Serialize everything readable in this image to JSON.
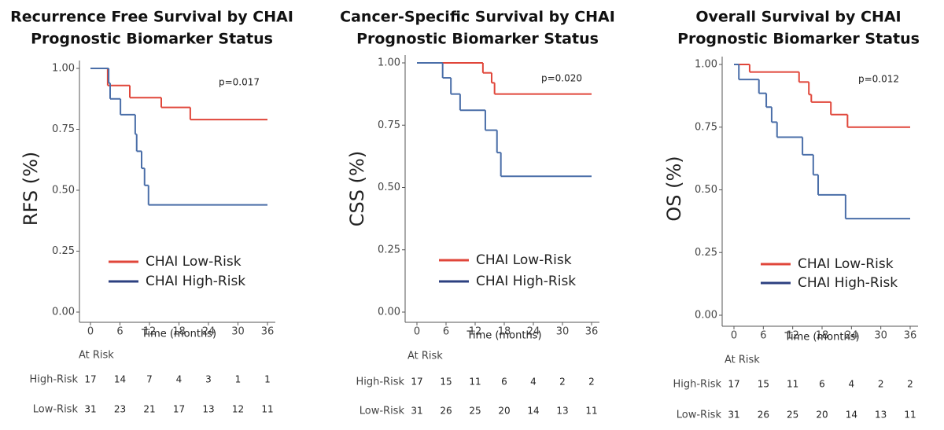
{
  "chart_data": [
    {
      "type": "step",
      "title": [
        "Recurrence Free Survival by CHAI",
        "Prognostic Biomarker Status"
      ],
      "y_label": "RFS (%)",
      "x_label": "Time (months)",
      "annotation": "p=0.017",
      "xlim": [
        0,
        36
      ],
      "xticks": [
        0,
        6,
        12,
        18,
        24,
        30,
        36
      ],
      "ylim": [
        0,
        1
      ],
      "yticks": [
        {
          "value": 0,
          "label": "0.00"
        },
        0.25,
        {
          "value": 0.5,
          "label": "0.50"
        },
        0.75,
        {
          "value": 1,
          "label": "1.00"
        }
      ],
      "series": [
        {
          "name": "CHAI Low-Risk",
          "color": "#e0463a",
          "x": [
            0,
            3.5,
            8,
            14.4,
            20.3,
            36
          ],
          "values": [
            1,
            0.93,
            0.88,
            0.84,
            0.79,
            0.79
          ]
        },
        {
          "name": "CHAI High-Risk",
          "color": "#4a6ea8",
          "x": [
            0,
            3.7,
            4,
            6.1,
            9.1,
            9.4,
            10.4,
            11,
            11.8,
            36
          ],
          "values": [
            1,
            0.94,
            0.875,
            0.81,
            0.73,
            0.66,
            0.59,
            0.52,
            0.44,
            0.44
          ]
        }
      ],
      "risk_table": {
        "title": "At Risk",
        "rows": [
          {
            "label": "High-Risk",
            "values": [
              17,
              14,
              7,
              4,
              3,
              1,
              1
            ]
          },
          {
            "label": "Low-Risk",
            "values": [
              31,
              23,
              21,
              17,
              13,
              12,
              11
            ]
          }
        ]
      }
    },
    {
      "type": "step",
      "title": [
        "Cancer-Specific Survival by CHAI",
        "Prognostic Biomarker Status"
      ],
      "y_label": "CSS (%)",
      "x_label": "Time (months)",
      "annotation": "p=0.020",
      "xlim": [
        0,
        36
      ],
      "xticks": [
        0,
        6,
        12,
        18,
        24,
        30,
        36
      ],
      "ylim": [
        0,
        1
      ],
      "yticks": [
        {
          "value": 0,
          "label": "0.00"
        },
        0.25,
        {
          "value": 0.5,
          "label": "0.50"
        },
        0.75,
        {
          "value": 1,
          "label": "1.00"
        }
      ],
      "series": [
        {
          "name": "CHAI Low-Risk",
          "color": "#e0463a",
          "x": [
            0,
            13.6,
            15.4,
            16,
            36
          ],
          "values": [
            1,
            0.96,
            0.92,
            0.875,
            0.875
          ]
        },
        {
          "name": "CHAI High-Risk",
          "color": "#4a6ea8",
          "x": [
            0,
            5.3,
            7,
            8.9,
            14.1,
            16.5,
            17.3,
            36
          ],
          "values": [
            1,
            0.94,
            0.875,
            0.81,
            0.73,
            0.64,
            0.545,
            0.545
          ]
        }
      ],
      "risk_table": {
        "title": "At Risk",
        "rows": [
          {
            "label": "High-Risk",
            "values": [
              17,
              15,
              11,
              6,
              4,
              2,
              2
            ]
          },
          {
            "label": "Low-Risk",
            "values": [
              31,
              26,
              25,
              20,
              14,
              13,
              11
            ]
          }
        ]
      }
    },
    {
      "type": "step",
      "title": [
        "Overall Survival by CHAI",
        "Prognostic Biomarker Status"
      ],
      "y_label": "OS (%)",
      "x_label": "Time (months)",
      "annotation": "p=0.012",
      "xlim": [
        0,
        36
      ],
      "xticks": [
        0,
        6,
        12,
        18,
        24,
        30,
        36
      ],
      "ylim": [
        0,
        1
      ],
      "yticks": [
        {
          "value": 0,
          "label": "0.00"
        },
        0.25,
        {
          "value": 0.5,
          "label": "0.50"
        },
        0.75,
        {
          "value": 1,
          "label": "1.00"
        }
      ],
      "series": [
        {
          "name": "CHAI Low-Risk",
          "color": "#e0463a",
          "x": [
            0,
            3.2,
            13.3,
            15.3,
            15.8,
            19.8,
            23.2,
            36
          ],
          "values": [
            1,
            0.97,
            0.93,
            0.88,
            0.85,
            0.8,
            0.75,
            0.75
          ]
        },
        {
          "name": "CHAI High-Risk",
          "color": "#4a6ea8",
          "x": [
            0,
            1,
            5.1,
            6.6,
            7.7,
            8.8,
            14,
            16.2,
            17.2,
            22.8,
            36
          ],
          "values": [
            1,
            0.94,
            0.885,
            0.83,
            0.77,
            0.71,
            0.64,
            0.56,
            0.48,
            0.385,
            0.385
          ]
        }
      ],
      "risk_table": {
        "title": "At Risk",
        "rows": [
          {
            "label": "High-Risk",
            "values": [
              17,
              15,
              11,
              6,
              4,
              2,
              2
            ]
          },
          {
            "label": "Low-Risk",
            "values": [
              31,
              26,
              25,
              20,
              14,
              13,
              11
            ]
          }
        ]
      }
    }
  ]
}
